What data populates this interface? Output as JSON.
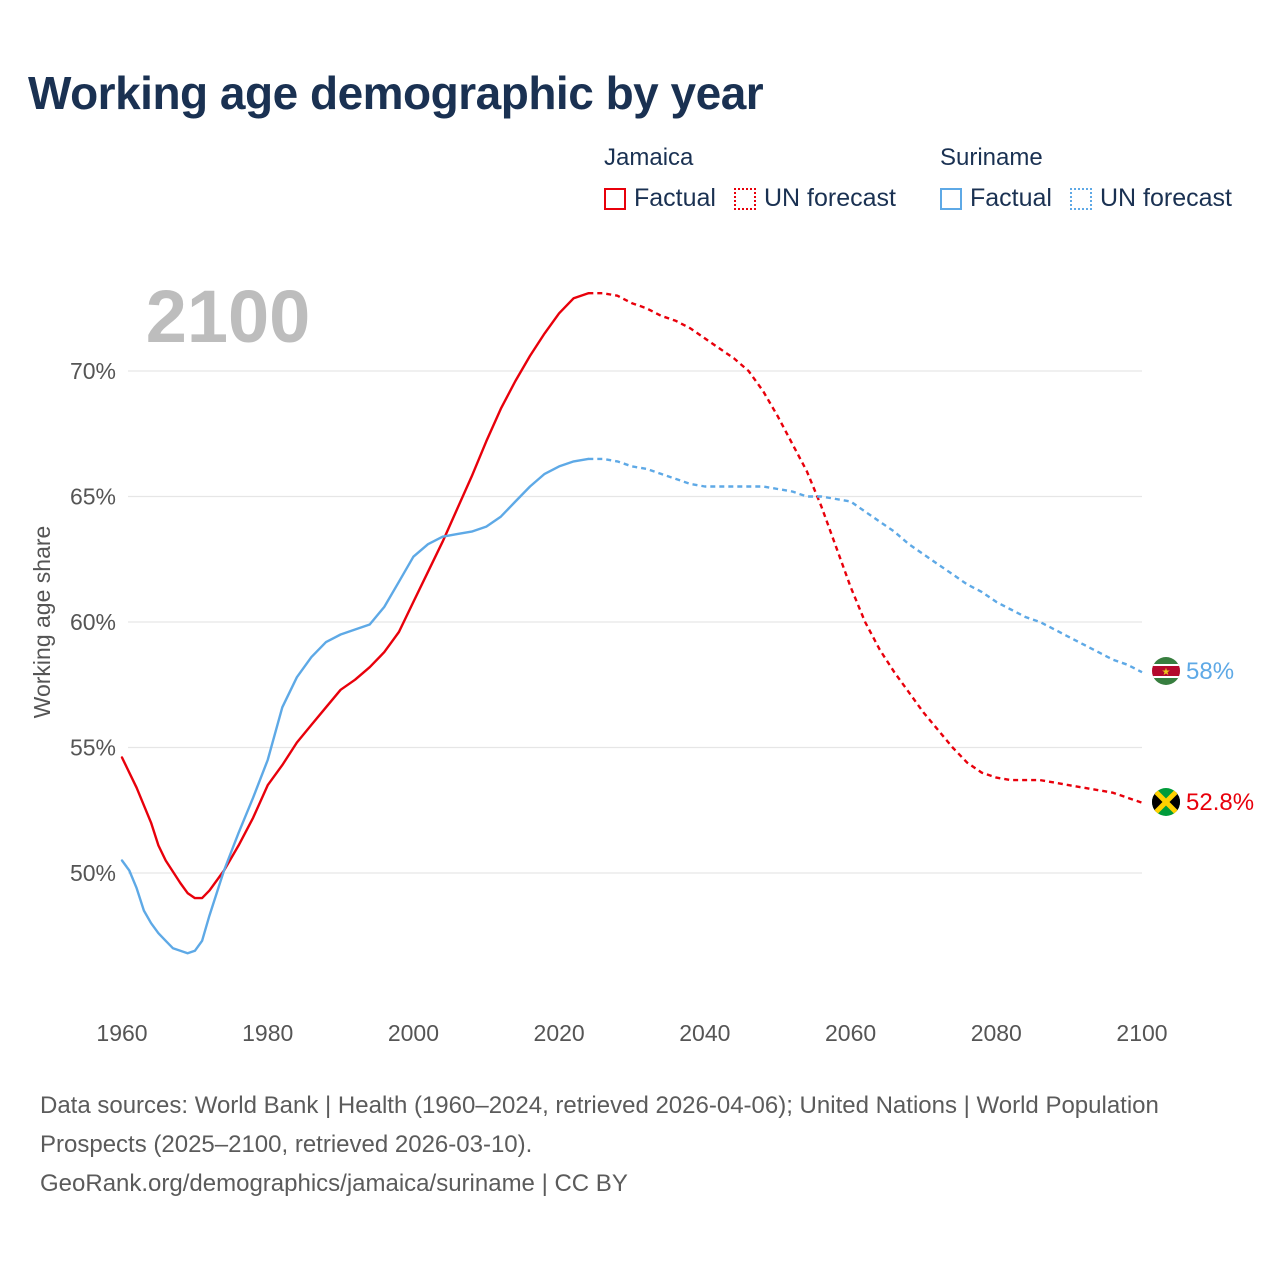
{
  "chart_data": {
    "type": "line",
    "title": "Working age demographic by year",
    "ylabel": "Working age share",
    "xlabel": "",
    "year_label": "2100",
    "xlim": [
      1960,
      2100
    ],
    "ylim": [
      45.5,
      74
    ],
    "x_ticks": [
      1960,
      1980,
      2000,
      2020,
      2040,
      2060,
      2080,
      2100
    ],
    "x_tick_labels": [
      "1960",
      "1980",
      "2000",
      "2020",
      "2040",
      "2060",
      "2080",
      "2100"
    ],
    "y_ticks": [
      50,
      55,
      60,
      65,
      70
    ],
    "y_tick_labels": [
      "50%",
      "55%",
      "60%",
      "65%",
      "70%"
    ],
    "grid": true,
    "factual_range": [
      1960,
      2024
    ],
    "forecast_range": [
      2024,
      2100
    ],
    "series": [
      {
        "name": "Jamaica",
        "color": "#e8000b",
        "end_label": "52.8%",
        "flag": "jamaica-flag",
        "points": [
          [
            1960,
            54.6
          ],
          [
            1962,
            53.4
          ],
          [
            1964,
            52.0
          ],
          [
            1965,
            51.1
          ],
          [
            1966,
            50.5
          ],
          [
            1968,
            49.6
          ],
          [
            1969,
            49.2
          ],
          [
            1970,
            49.0
          ],
          [
            1971,
            49.0
          ],
          [
            1972,
            49.3
          ],
          [
            1974,
            50.1
          ],
          [
            1976,
            51.1
          ],
          [
            1978,
            52.2
          ],
          [
            1980,
            53.5
          ],
          [
            1982,
            54.3
          ],
          [
            1984,
            55.2
          ],
          [
            1986,
            55.9
          ],
          [
            1988,
            56.6
          ],
          [
            1990,
            57.3
          ],
          [
            1992,
            57.7
          ],
          [
            1994,
            58.2
          ],
          [
            1996,
            58.8
          ],
          [
            1998,
            59.6
          ],
          [
            2000,
            60.8
          ],
          [
            2002,
            62.0
          ],
          [
            2004,
            63.2
          ],
          [
            2006,
            64.5
          ],
          [
            2008,
            65.8
          ],
          [
            2010,
            67.2
          ],
          [
            2012,
            68.5
          ],
          [
            2014,
            69.6
          ],
          [
            2016,
            70.6
          ],
          [
            2018,
            71.5
          ],
          [
            2020,
            72.3
          ],
          [
            2022,
            72.9
          ],
          [
            2024,
            73.1
          ],
          [
            2026,
            73.1
          ],
          [
            2028,
            73.0
          ],
          [
            2030,
            72.7
          ],
          [
            2032,
            72.5
          ],
          [
            2034,
            72.2
          ],
          [
            2036,
            72.0
          ],
          [
            2038,
            71.7
          ],
          [
            2040,
            71.3
          ],
          [
            2042,
            70.9
          ],
          [
            2044,
            70.5
          ],
          [
            2046,
            70.0
          ],
          [
            2048,
            69.2
          ],
          [
            2050,
            68.2
          ],
          [
            2052,
            67.1
          ],
          [
            2054,
            66.0
          ],
          [
            2056,
            64.6
          ],
          [
            2058,
            63.0
          ],
          [
            2060,
            61.4
          ],
          [
            2062,
            60.0
          ],
          [
            2064,
            58.9
          ],
          [
            2066,
            58.0
          ],
          [
            2068,
            57.2
          ],
          [
            2070,
            56.4
          ],
          [
            2072,
            55.7
          ],
          [
            2074,
            55.0
          ],
          [
            2076,
            54.4
          ],
          [
            2078,
            54.0
          ],
          [
            2080,
            53.8
          ],
          [
            2082,
            53.7
          ],
          [
            2084,
            53.7
          ],
          [
            2086,
            53.7
          ],
          [
            2088,
            53.6
          ],
          [
            2090,
            53.5
          ],
          [
            2092,
            53.4
          ],
          [
            2094,
            53.3
          ],
          [
            2096,
            53.2
          ],
          [
            2098,
            53.0
          ],
          [
            2100,
            52.8
          ]
        ]
      },
      {
        "name": "Suriname",
        "color": "#5ea9e6",
        "end_label": "58%",
        "flag": "suriname-flag",
        "points": [
          [
            1960,
            50.5
          ],
          [
            1961,
            50.1
          ],
          [
            1962,
            49.4
          ],
          [
            1963,
            48.5
          ],
          [
            1964,
            48.0
          ],
          [
            1965,
            47.6
          ],
          [
            1966,
            47.3
          ],
          [
            1967,
            47.0
          ],
          [
            1968,
            46.9
          ],
          [
            1969,
            46.8
          ],
          [
            1970,
            46.9
          ],
          [
            1971,
            47.3
          ],
          [
            1972,
            48.3
          ],
          [
            1973,
            49.2
          ],
          [
            1974,
            50.1
          ],
          [
            1976,
            51.6
          ],
          [
            1978,
            53.0
          ],
          [
            1980,
            54.5
          ],
          [
            1982,
            56.6
          ],
          [
            1984,
            57.8
          ],
          [
            1986,
            58.6
          ],
          [
            1988,
            59.2
          ],
          [
            1990,
            59.5
          ],
          [
            1992,
            59.7
          ],
          [
            1994,
            59.9
          ],
          [
            1996,
            60.6
          ],
          [
            1998,
            61.6
          ],
          [
            2000,
            62.6
          ],
          [
            2002,
            63.1
          ],
          [
            2004,
            63.4
          ],
          [
            2006,
            63.5
          ],
          [
            2008,
            63.6
          ],
          [
            2010,
            63.8
          ],
          [
            2012,
            64.2
          ],
          [
            2014,
            64.8
          ],
          [
            2016,
            65.4
          ],
          [
            2018,
            65.9
          ],
          [
            2020,
            66.2
          ],
          [
            2022,
            66.4
          ],
          [
            2024,
            66.5
          ],
          [
            2026,
            66.5
          ],
          [
            2028,
            66.4
          ],
          [
            2030,
            66.2
          ],
          [
            2032,
            66.1
          ],
          [
            2034,
            65.9
          ],
          [
            2036,
            65.7
          ],
          [
            2038,
            65.5
          ],
          [
            2040,
            65.4
          ],
          [
            2042,
            65.4
          ],
          [
            2044,
            65.4
          ],
          [
            2046,
            65.4
          ],
          [
            2048,
            65.4
          ],
          [
            2050,
            65.3
          ],
          [
            2052,
            65.2
          ],
          [
            2054,
            65.0
          ],
          [
            2056,
            65.0
          ],
          [
            2058,
            64.9
          ],
          [
            2060,
            64.8
          ],
          [
            2062,
            64.4
          ],
          [
            2064,
            64.0
          ],
          [
            2066,
            63.6
          ],
          [
            2068,
            63.1
          ],
          [
            2070,
            62.7
          ],
          [
            2072,
            62.3
          ],
          [
            2074,
            61.9
          ],
          [
            2076,
            61.5
          ],
          [
            2078,
            61.2
          ],
          [
            2080,
            60.8
          ],
          [
            2082,
            60.5
          ],
          [
            2084,
            60.2
          ],
          [
            2086,
            60.0
          ],
          [
            2088,
            59.7
          ],
          [
            2090,
            59.4
          ],
          [
            2092,
            59.1
          ],
          [
            2094,
            58.8
          ],
          [
            2096,
            58.5
          ],
          [
            2098,
            58.3
          ],
          [
            2100,
            58.0
          ]
        ]
      }
    ]
  },
  "legend": {
    "groups": [
      {
        "country": "Jamaica",
        "factual_label": "Factual",
        "forecast_label": "UN forecast"
      },
      {
        "country": "Suriname",
        "factual_label": "Factual",
        "forecast_label": "UN forecast"
      }
    ]
  },
  "footer": {
    "line1": "Data sources: World Bank | Health (1960–2024, retrieved 2026-04-06); United Nations | World Population Prospects (2025–2100, retrieved 2026-03-10).",
    "line2": "GeoRank.org/demographics/jamaica/suriname | CC BY"
  }
}
